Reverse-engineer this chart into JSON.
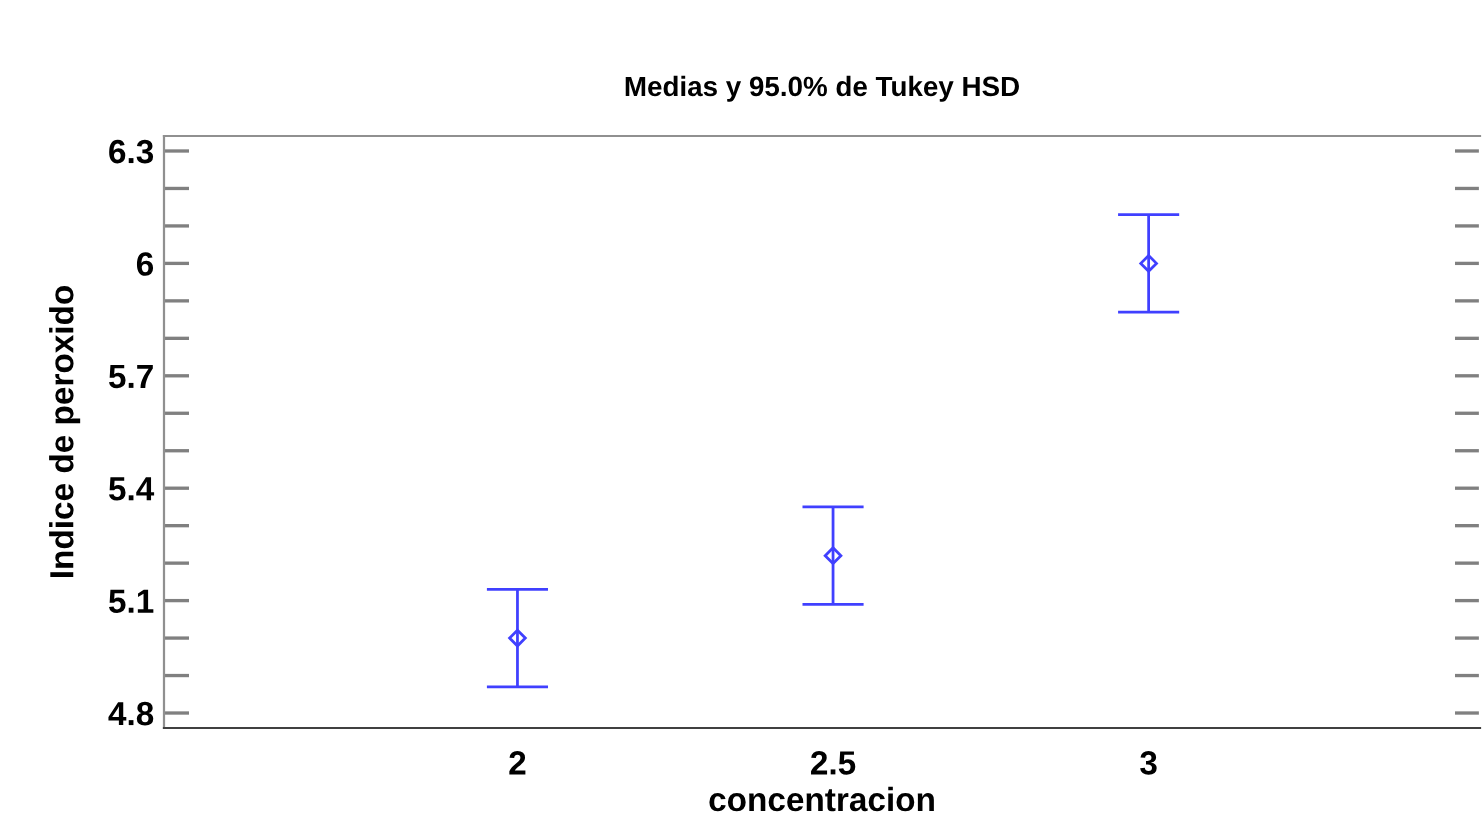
{
  "chart_data": {
    "type": "scatter",
    "title": "Medias y 95.0% de Tukey HSD",
    "xlabel": "concentracion",
    "ylabel": "Indice de peroxido",
    "categories": [
      "2",
      "2.5",
      "3"
    ],
    "series": [
      {
        "color": "#4040ff",
        "values": [
          5.0,
          5.22,
          6.0
        ],
        "errors": [
          0.13,
          0.13,
          0.13
        ]
      }
    ],
    "marker": "diamond",
    "ylim": [
      4.76,
      6.34
    ],
    "yticks": [
      4.8,
      {
        "value": 4.9,
        "label": null
      },
      {
        "value": 5.0,
        "label": null
      },
      5.1,
      {
        "value": 5.2,
        "label": null
      },
      {
        "value": 5.3,
        "label": null
      },
      5.4,
      {
        "value": 5.5,
        "label": null
      },
      {
        "value": 5.6,
        "label": null
      },
      5.7,
      {
        "value": 5.8,
        "label": null
      },
      {
        "value": 5.9,
        "label": null
      },
      6,
      {
        "value": 6.1,
        "label": null
      },
      {
        "value": 6.2,
        "label": null
      },
      6.3
    ],
    "grid": false,
    "legend": false
  }
}
